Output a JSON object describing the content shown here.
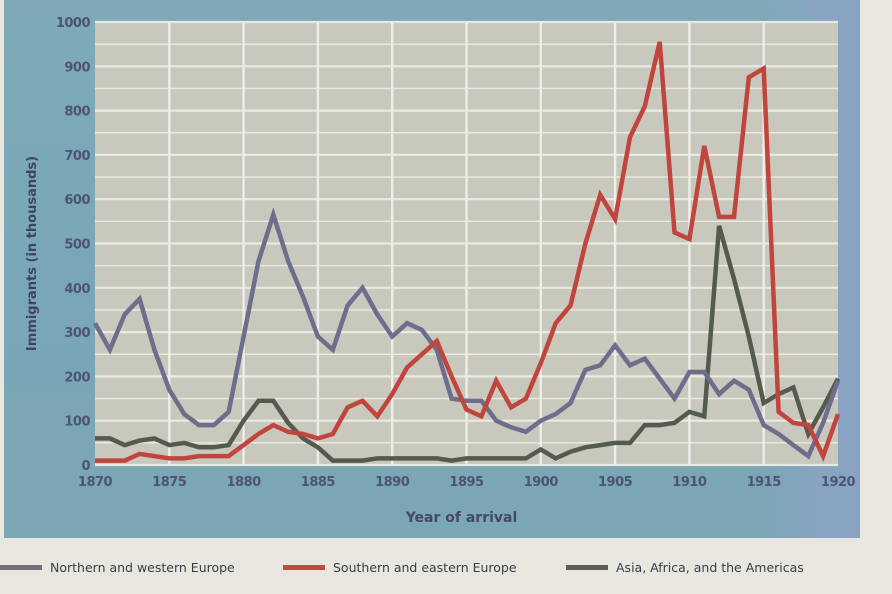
{
  "chart_data": {
    "type": "line",
    "title": "",
    "xlabel": "Year of arrival",
    "ylabel": "Immigrants (in thousands)",
    "ylim": [
      0,
      1000
    ],
    "xlim": [
      1870,
      1920
    ],
    "grid": true,
    "legend_position": "bottom",
    "y_ticks": [
      "0",
      "100",
      "200",
      "300",
      "400",
      "500",
      "600",
      "700",
      "800",
      "900",
      "1000"
    ],
    "x_ticks": [
      "1870",
      "1875",
      "1880",
      "1885",
      "1890",
      "1895",
      "1900",
      "1905",
      "1910",
      "1915",
      "1920"
    ],
    "x": [
      1870,
      1871,
      1872,
      1873,
      1874,
      1875,
      1876,
      1877,
      1878,
      1879,
      1880,
      1881,
      1882,
      1883,
      1884,
      1885,
      1886,
      1887,
      1888,
      1889,
      1890,
      1891,
      1892,
      1893,
      1894,
      1895,
      1896,
      1897,
      1898,
      1899,
      1900,
      1901,
      1902,
      1903,
      1904,
      1905,
      1906,
      1907,
      1908,
      1909,
      1910,
      1911,
      1912,
      1913,
      1914,
      1915,
      1916,
      1917,
      1918,
      1919,
      1920
    ],
    "series": [
      {
        "name": "Northern and western Europe",
        "color": "#6e6d8c",
        "values": [
          320,
          260,
          340,
          375,
          260,
          170,
          115,
          90,
          90,
          120,
          290,
          460,
          565,
          460,
          380,
          290,
          260,
          360,
          400,
          340,
          290,
          320,
          305,
          260,
          150,
          145,
          145,
          100,
          85,
          75,
          100,
          115,
          140,
          215,
          225,
          270,
          225,
          240,
          195,
          150,
          210,
          210,
          160,
          190,
          170,
          90,
          70,
          45,
          20,
          95,
          190
        ]
      },
      {
        "name": "Southern and eastern Europe",
        "color": "#c0453d",
        "values": [
          10,
          10,
          10,
          25,
          20,
          15,
          15,
          20,
          20,
          20,
          45,
          70,
          90,
          75,
          70,
          60,
          70,
          130,
          145,
          110,
          160,
          220,
          250,
          280,
          200,
          125,
          110,
          190,
          130,
          150,
          230,
          320,
          360,
          500,
          610,
          555,
          740,
          810,
          955,
          525,
          510,
          720,
          560,
          560,
          875,
          895,
          120,
          95,
          90,
          20,
          115
        ]
      },
      {
        "name": "Asia, Africa, and the Americas",
        "color": "#555a4f",
        "values": [
          60,
          60,
          45,
          55,
          60,
          45,
          50,
          40,
          40,
          45,
          100,
          145,
          145,
          95,
          60,
          40,
          10,
          10,
          10,
          15,
          15,
          15,
          15,
          15,
          10,
          15,
          15,
          15,
          15,
          15,
          35,
          15,
          30,
          40,
          45,
          50,
          50,
          90,
          90,
          95,
          120,
          110,
          540,
          420,
          290,
          140,
          160,
          175,
          70,
          130,
          195
        ]
      }
    ]
  },
  "legend": {
    "items": [
      {
        "label": "Northern and western Europe",
        "color": "#6f6f78"
      },
      {
        "label": "Southern and eastern Europe",
        "color": "#c04a3e"
      },
      {
        "label": "Asia, Africa, and the Americas",
        "color": "#5a5c55"
      }
    ]
  },
  "colors": {
    "panel": "#7aa7b7",
    "plot_bg": "#c9c8bd",
    "grid": "#eeeee8",
    "page_bg": "#e9e6e0"
  }
}
